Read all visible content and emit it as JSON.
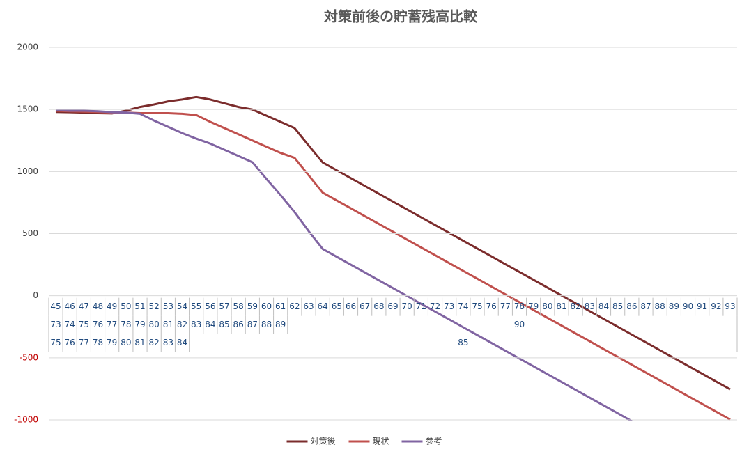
{
  "chart_data": {
    "type": "line",
    "title": "対策前後の貯蓄残高比較",
    "categories": [
      "45",
      "46",
      "47",
      "48",
      "49",
      "50",
      "51",
      "52",
      "53",
      "54",
      "55",
      "56",
      "57",
      "58",
      "59",
      "60",
      "61",
      "62",
      "63",
      "64",
      "65",
      "66",
      "67",
      "68",
      "69",
      "70",
      "71",
      "72",
      "73",
      "74",
      "75",
      "76",
      "77",
      "78",
      "79",
      "80",
      "81",
      "82",
      "83",
      "84",
      "85",
      "86",
      "87",
      "88",
      "89",
      "90",
      "91",
      "92",
      "93"
    ],
    "category_levels": [
      [
        "73",
        "74",
        "75",
        "76",
        "77",
        "78",
        "79",
        "80",
        "81",
        "82",
        "83",
        "84",
        "85",
        "86",
        "87",
        "88",
        "89",
        null,
        null,
        null,
        null,
        null,
        null,
        null,
        null,
        null,
        null,
        null,
        null,
        null,
        null,
        null,
        null,
        "90",
        null,
        null,
        null,
        null,
        null,
        null,
        null,
        null,
        null,
        null,
        null,
        null,
        null,
        null,
        null
      ],
      [
        "75",
        "76",
        "77",
        "78",
        "79",
        "80",
        "81",
        "82",
        "83",
        "84",
        null,
        null,
        null,
        null,
        null,
        null,
        null,
        null,
        null,
        null,
        null,
        null,
        null,
        null,
        null,
        null,
        null,
        null,
        null,
        "85",
        null,
        null,
        null,
        null,
        null,
        null,
        null,
        null,
        null,
        null,
        null,
        null,
        null,
        null,
        null,
        null,
        null,
        null,
        null
      ]
    ],
    "series": [
      {
        "name": "対策後",
        "color": "#7b2c2c",
        "values": [
          1480,
          1478,
          1475,
          1470,
          1468,
          1490,
          1520,
          1540,
          1565,
          1580,
          1600,
          1580,
          1550,
          1520,
          1500,
          1450,
          1400,
          1350,
          1210,
          1073,
          1010,
          947,
          884,
          821,
          758,
          695,
          632,
          569,
          506,
          443,
          380,
          317,
          254,
          191,
          128,
          65,
          2,
          -61,
          -124,
          -187,
          -250,
          -313,
          -376,
          -439,
          -502,
          -565,
          -628,
          -691,
          -754
        ]
      },
      {
        "name": "現状",
        "color": "#c0504d",
        "values": [
          1490,
          1485,
          1483,
          1480,
          1475,
          1475,
          1470,
          1470,
          1470,
          1465,
          1455,
          1400,
          1350,
          1300,
          1250,
          1200,
          1150,
          1110,
          970,
          830,
          767,
          704,
          641,
          578,
          515,
          452,
          389,
          326,
          263,
          200,
          137,
          74,
          11,
          -52,
          -115,
          -178,
          -241,
          -304,
          -367,
          -430,
          -493,
          -556,
          -619,
          -682,
          -745,
          -808,
          -871,
          -934,
          -997
        ]
      },
      {
        "name": "参考",
        "color": "#8064a2",
        "values": [
          1495,
          1490,
          1490,
          1485,
          1478,
          1475,
          1465,
          1410,
          1360,
          1310,
          1265,
          1225,
          1175,
          1125,
          1075,
          940,
          810,
          674,
          520,
          376,
          313,
          250,
          187,
          124,
          61,
          -2,
          -65,
          -128,
          -191,
          -254,
          -317,
          -380,
          -443,
          -506,
          -569,
          -632,
          -695,
          -758,
          -821,
          -884,
          -947,
          -1010,
          null,
          null,
          null,
          null,
          null,
          null,
          null
        ]
      }
    ],
    "ylim": [
      -1000,
      2000
    ],
    "yticks": [
      -1000,
      -500,
      0,
      500,
      1000,
      1500,
      2000
    ],
    "grid": true,
    "negative_tick_color": "#c00000",
    "legend": "bottom"
  }
}
